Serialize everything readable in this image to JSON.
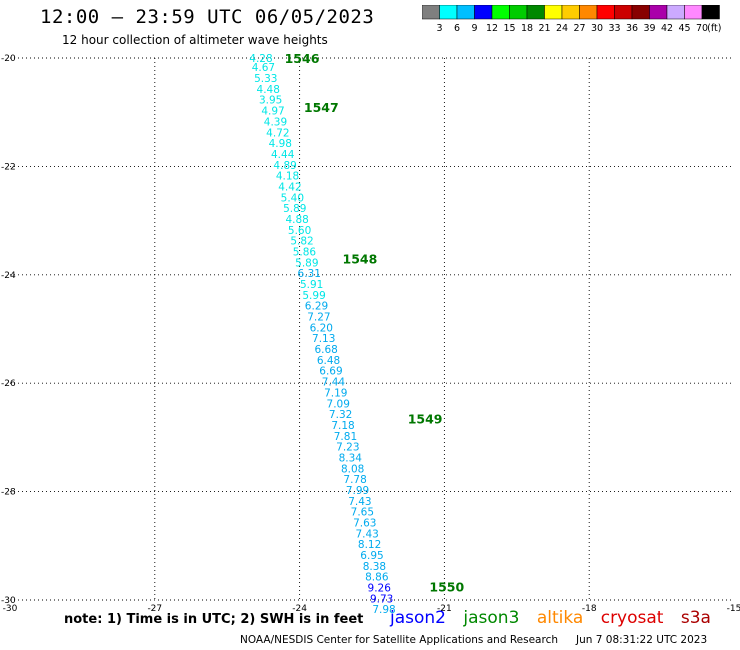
{
  "header": {
    "title": "12:00 – 23:59 UTC 06/05/2023",
    "subtitle": "12 hour collection of altimeter wave heights"
  },
  "colorbar": {
    "unit": "(ft)",
    "labels": [
      "3",
      "6",
      "9",
      "12",
      "15",
      "18",
      "21",
      "24",
      "27",
      "30",
      "33",
      "36",
      "39",
      "42",
      "45",
      "70"
    ],
    "colors": [
      "#7f7f7f",
      "#00ffff",
      "#00bfff",
      "#0000ff",
      "#00ff00",
      "#00cc00",
      "#008800",
      "#ffff00",
      "#ffcc00",
      "#ff8800",
      "#ff0000",
      "#cc0000",
      "#880000",
      "#aa00aa",
      "#ccaaff",
      "#ff88ff",
      "#000000"
    ]
  },
  "chart_data": {
    "type": "scatter",
    "title": "12:00 – 23:59 UTC 06/05/2023",
    "subtitle": "12 hour collection of altimeter wave heights",
    "xlabel": "",
    "ylabel": "",
    "xlim": [
      -30,
      -15
    ],
    "ylim": [
      -30,
      -20
    ],
    "x_ticks": [
      -30,
      -27,
      -24,
      -21,
      -18,
      -15
    ],
    "y_ticks": [
      -30,
      -28,
      -26,
      -24,
      -22,
      -20
    ],
    "grid": true,
    "points": [
      {
        "lon": -24.8,
        "lat": -20.0,
        "v": "4.28"
      },
      {
        "lon": -24.75,
        "lat": -20.17,
        "v": "4.67"
      },
      {
        "lon": -24.7,
        "lat": -20.37,
        "v": "5.33"
      },
      {
        "lon": -24.65,
        "lat": -20.57,
        "v": "4.48"
      },
      {
        "lon": -24.6,
        "lat": -20.77,
        "v": "3.95"
      },
      {
        "lon": -24.55,
        "lat": -20.97,
        "v": "4.97"
      },
      {
        "lon": -24.5,
        "lat": -21.17,
        "v": "4.39"
      },
      {
        "lon": -24.45,
        "lat": -21.37,
        "v": "4.72"
      },
      {
        "lon": -24.4,
        "lat": -21.57,
        "v": "4.98"
      },
      {
        "lon": -24.35,
        "lat": -21.77,
        "v": "4.44"
      },
      {
        "lon": -24.3,
        "lat": -21.97,
        "v": "4.89"
      },
      {
        "lon": -24.25,
        "lat": -22.17,
        "v": "4.18"
      },
      {
        "lon": -24.2,
        "lat": -22.37,
        "v": "4.42"
      },
      {
        "lon": -24.15,
        "lat": -22.57,
        "v": "5.40"
      },
      {
        "lon": -24.1,
        "lat": -22.77,
        "v": "5.89"
      },
      {
        "lon": -24.05,
        "lat": -22.97,
        "v": "4.88"
      },
      {
        "lon": -24.0,
        "lat": -23.17,
        "v": "5.60"
      },
      {
        "lon": -23.95,
        "lat": -23.37,
        "v": "5.82"
      },
      {
        "lon": -23.9,
        "lat": -23.57,
        "v": "5.86"
      },
      {
        "lon": -23.85,
        "lat": -23.77,
        "v": "5.89"
      },
      {
        "lon": -23.8,
        "lat": -23.97,
        "v": "6.31"
      },
      {
        "lon": -23.75,
        "lat": -24.17,
        "v": "5.91"
      },
      {
        "lon": -23.7,
        "lat": -24.37,
        "v": "5.99"
      },
      {
        "lon": -23.65,
        "lat": -24.57,
        "v": "6.29"
      },
      {
        "lon": -23.6,
        "lat": -24.77,
        "v": "7.27"
      },
      {
        "lon": -23.55,
        "lat": -24.97,
        "v": "6.20"
      },
      {
        "lon": -23.5,
        "lat": -25.17,
        "v": "7.13"
      },
      {
        "lon": -23.45,
        "lat": -25.37,
        "v": "6.68"
      },
      {
        "lon": -23.4,
        "lat": -25.57,
        "v": "6.48"
      },
      {
        "lon": -23.35,
        "lat": -25.77,
        "v": "6.69"
      },
      {
        "lon": -23.3,
        "lat": -25.97,
        "v": "7.44"
      },
      {
        "lon": -23.25,
        "lat": -26.17,
        "v": "7.19"
      },
      {
        "lon": -23.2,
        "lat": -26.37,
        "v": "7.09"
      },
      {
        "lon": -23.15,
        "lat": -26.57,
        "v": "7.32"
      },
      {
        "lon": -23.1,
        "lat": -26.77,
        "v": "7.18"
      },
      {
        "lon": -23.05,
        "lat": -26.97,
        "v": "7.81"
      },
      {
        "lon": -23.0,
        "lat": -27.17,
        "v": "7.23"
      },
      {
        "lon": -22.95,
        "lat": -27.37,
        "v": "8.34"
      },
      {
        "lon": -22.9,
        "lat": -27.57,
        "v": "8.08"
      },
      {
        "lon": -22.85,
        "lat": -27.77,
        "v": "7.78"
      },
      {
        "lon": -22.8,
        "lat": -27.97,
        "v": "7.99"
      },
      {
        "lon": -22.75,
        "lat": -28.17,
        "v": "7.43"
      },
      {
        "lon": -22.7,
        "lat": -28.37,
        "v": "7.65"
      },
      {
        "lon": -22.65,
        "lat": -28.57,
        "v": "7.63"
      },
      {
        "lon": -22.6,
        "lat": -28.77,
        "v": "7.43"
      },
      {
        "lon": -22.55,
        "lat": -28.97,
        "v": "8.12"
      },
      {
        "lon": -22.5,
        "lat": -29.17,
        "v": "6.95"
      },
      {
        "lon": -22.45,
        "lat": -29.37,
        "v": "8.38"
      },
      {
        "lon": -22.4,
        "lat": -29.57,
        "v": "8.86"
      },
      {
        "lon": -22.35,
        "lat": -29.77,
        "v": "9.26"
      },
      {
        "lon": -22.3,
        "lat": -29.97,
        "v": "9.73"
      },
      {
        "lon": -22.25,
        "lat": -30.17,
        "v": "7.98"
      }
    ],
    "pass_labels": [
      {
        "lon": -23.95,
        "lat": -20.0,
        "text": "1546"
      },
      {
        "lon": -23.55,
        "lat": -20.9,
        "text": "1547"
      },
      {
        "lon": -22.75,
        "lat": -23.7,
        "text": "1548"
      },
      {
        "lon": -21.4,
        "lat": -26.65,
        "text": "1549"
      },
      {
        "lon": -20.95,
        "lat": -29.75,
        "text": "1550"
      }
    ],
    "colors": {
      "cyan": "#00e6e6",
      "skyblue": "#00aaee",
      "blue": "#0000ff",
      "pass": "#007700",
      "grid": "#000000"
    }
  },
  "footer": {
    "note": "note:  1) Time is in UTC;  2) SWH is in feet",
    "missions": [
      {
        "name": "jason2",
        "color": "#0000ff"
      },
      {
        "name": "jason3",
        "color": "#008800"
      },
      {
        "name": "altika",
        "color": "#ff8800"
      },
      {
        "name": "cryosat",
        "color": "#dd0000"
      },
      {
        "name": "s3a",
        "color": "#aa0000"
      }
    ],
    "credit": "NOAA/NESDIS Center for Satellite Applications and Research",
    "timestamp": "Jun  7 08:31:22 UTC 2023"
  }
}
